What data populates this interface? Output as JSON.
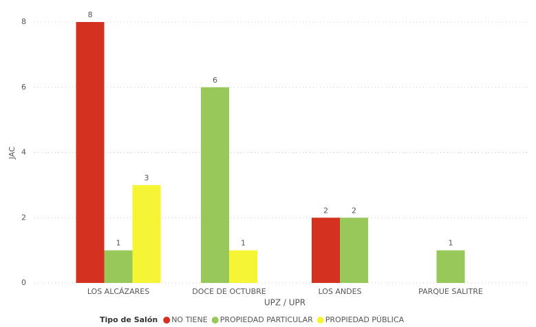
{
  "chart_data": {
    "type": "bar",
    "x_label": "UPZ / UPR",
    "y_label": "JAC",
    "categories": [
      "LOS ALCÁZARES",
      "DOCE DE OCTUBRE",
      "LOS ANDES",
      "PARQUE SALITRE"
    ],
    "legend_title": "Tipo de Salón",
    "series": [
      {
        "name": "NO TIENE",
        "color": "#d43120",
        "values": [
          8,
          null,
          2,
          null
        ]
      },
      {
        "name": "PROPIEDAD PARTICULAR",
        "color": "#98c75a",
        "values": [
          1,
          6,
          2,
          1
        ]
      },
      {
        "name": "PROPIEDAD PÚBLICA",
        "color": "#f6f535",
        "values": [
          3,
          1,
          null,
          null
        ]
      }
    ],
    "ylim": [
      0,
      8
    ],
    "yticks": [
      0,
      2,
      4,
      6,
      8
    ],
    "grid": true,
    "legend": "bottom"
  }
}
